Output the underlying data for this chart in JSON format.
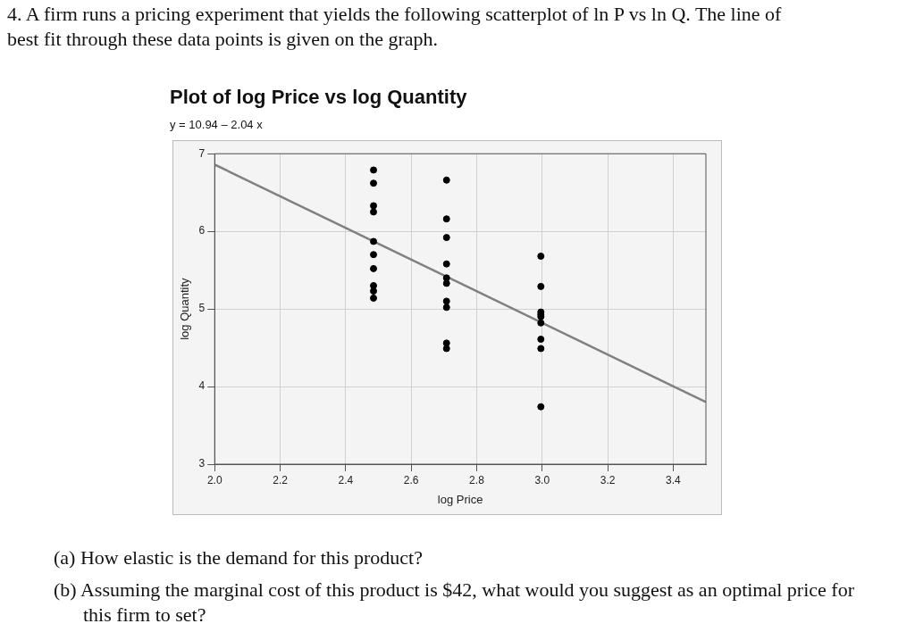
{
  "chart_data": {
    "type": "scatter",
    "title": "Plot of log Price vs log Quantity",
    "subtitle": "y = 10.94 – 2.04 x",
    "xlabel": "log Price",
    "ylabel": "log Quantity",
    "annotations": [
      "4. A firm runs a pricing experiment that yields the following scatterplot of ln P vs ln Q. The line of best fit through these data points is given on the graph.",
      "(a) How elastic is the demand for this product?",
      "(b) Assuming the marginal cost of this product is $42, what would you suggest as an optimal price for this firm to set?"
    ],
    "series": [
      {
        "color": "#000000",
        "x": [
          2.485,
          2.485,
          2.485,
          2.485,
          2.485,
          2.485,
          2.485,
          2.485,
          2.485,
          2.485,
          2.708,
          2.708,
          2.708,
          2.708,
          2.708,
          2.708,
          2.708,
          2.708,
          2.708,
          2.708,
          2.996,
          2.996,
          2.996,
          2.996,
          2.996,
          2.996,
          2.996,
          2.996,
          2.996
        ],
        "values": [
          6.79,
          6.62,
          6.33,
          6.25,
          5.87,
          5.7,
          5.52,
          5.3,
          5.23,
          5.14,
          6.66,
          6.16,
          5.92,
          5.58,
          5.4,
          5.33,
          5.1,
          5.02,
          4.56,
          4.49,
          5.68,
          5.29,
          4.96,
          4.93,
          4.9,
          4.82,
          4.61,
          4.49,
          3.74
        ]
      },
      {
        "type": "line",
        "color": "#808080",
        "marker": "none",
        "x": [
          2.0,
          3.5
        ],
        "values": [
          6.86,
          3.8
        ]
      }
    ],
    "xlim": [
      2.0,
      3.5
    ],
    "xticks": [
      {
        "value": 2,
        "label": "2.0"
      },
      2.2,
      2.4,
      2.6,
      2.8,
      {
        "value": 3,
        "label": "3.0"
      },
      3.2,
      3.4
    ],
    "ylim": [
      3,
      7
    ],
    "yticks": [
      3,
      4,
      5,
      6,
      7
    ],
    "grid": true,
    "legend": false,
    "marker": "circle"
  }
}
